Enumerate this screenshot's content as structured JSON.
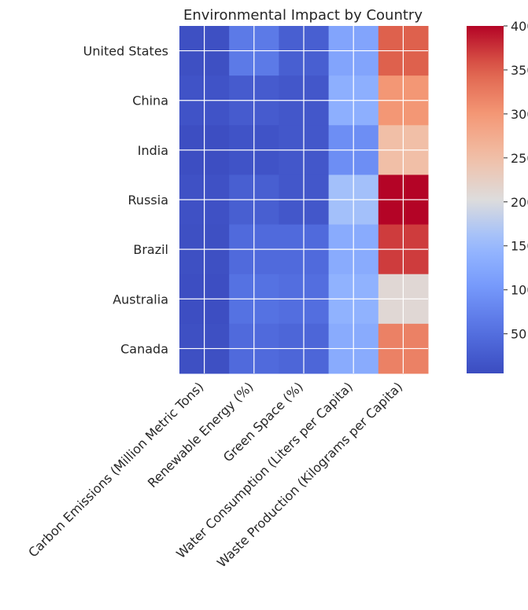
{
  "chart_data": {
    "type": "heatmap",
    "title": "Environmental Impact by Country",
    "xlabel": "",
    "ylabel": "",
    "rows": [
      "United States",
      "China",
      "India",
      "Russia",
      "Brazil",
      "Australia",
      "Canada"
    ],
    "columns": [
      "Carbon Emissions (Million Metric Tons)",
      "Renewable Energy (%)",
      "Green Space (%)",
      "Water Consumption (Liters per Capita)",
      "Waste Production (Kilograms per Capita)"
    ],
    "values": [
      [
        10,
        65,
        30,
        120,
        350
      ],
      [
        15,
        25,
        20,
        135,
        300
      ],
      [
        8,
        15,
        20,
        90,
        250
      ],
      [
        12,
        30,
        20,
        160,
        400
      ],
      [
        10,
        45,
        45,
        130,
        370
      ],
      [
        8,
        55,
        50,
        140,
        210
      ],
      [
        10,
        45,
        40,
        130,
        320
      ]
    ],
    "colormap": "coolwarm",
    "color_range": [
      5,
      400
    ],
    "colorbar_ticks": [
      50,
      100,
      150,
      200,
      250,
      300,
      350,
      400
    ],
    "grid": true,
    "colors": {
      "low": "#3b4cc0",
      "mid": "#dddcdc",
      "high": "#b40426",
      "grid": "#ffffff",
      "text": "#262626"
    }
  }
}
